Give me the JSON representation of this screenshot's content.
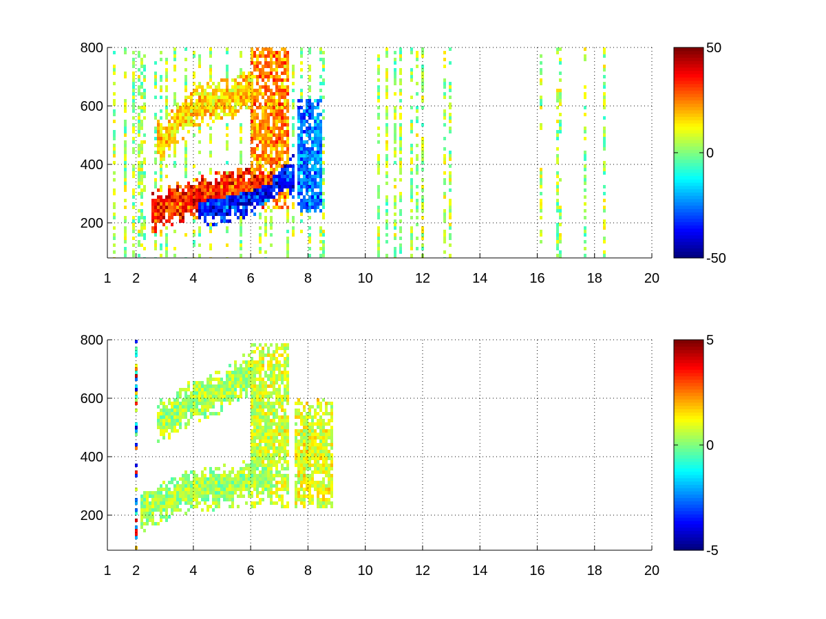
{
  "chart_data": [
    {
      "type": "heatmap",
      "title": "",
      "xlabel": "",
      "ylabel": "",
      "xlim": [
        1,
        20
      ],
      "ylim": [
        80,
        800
      ],
      "xticks": [
        1,
        2,
        4,
        6,
        8,
        10,
        12,
        14,
        16,
        18,
        20
      ],
      "yticks": [
        200,
        400,
        600,
        800
      ],
      "grid": true,
      "colormap": "jet",
      "clim": [
        -50,
        50
      ],
      "colorbar_ticks": [
        -50,
        0,
        50
      ],
      "description_features": [
        {
          "name": "ridge-upper",
          "x": [
            3.0,
            3.6,
            4.2,
            5.0,
            5.8
          ],
          "y": [
            480,
            560,
            600,
            615,
            650
          ],
          "value": 20
        },
        {
          "name": "ridge-lower",
          "x": [
            2.8,
            3.5,
            4.2,
            5.0,
            5.8,
            6.5
          ],
          "y": [
            240,
            270,
            290,
            300,
            320,
            340
          ],
          "value": 42
        },
        {
          "name": "trough-lower",
          "x": [
            4.5,
            5.5,
            6.2,
            6.8,
            7.2
          ],
          "y": [
            260,
            280,
            300,
            330,
            360
          ],
          "value": -45
        },
        {
          "name": "column-6-7",
          "x": [
            6.0,
            7.3
          ],
          "y": [
            250,
            800
          ],
          "value": 30
        },
        {
          "name": "column-7-8",
          "x": [
            7.6,
            8.5
          ],
          "y": [
            230,
            620
          ],
          "value": -30
        }
      ]
    },
    {
      "type": "heatmap",
      "title": "",
      "xlabel": "",
      "ylabel": "",
      "xlim": [
        1,
        20
      ],
      "ylim": [
        80,
        800
      ],
      "xticks": [
        1,
        2,
        4,
        6,
        8,
        10,
        12,
        14,
        16,
        18,
        20
      ],
      "yticks": [
        200,
        400,
        600,
        800
      ],
      "grid": true,
      "colormap": "jet",
      "clim": [
        -5,
        5
      ],
      "colorbar_ticks": [
        -5,
        0,
        5
      ],
      "description_features": [
        {
          "name": "upper-band",
          "x": [
            3.0,
            4.0,
            5.0,
            5.8
          ],
          "y": [
            520,
            590,
            620,
            680
          ],
          "value": 0.5
        },
        {
          "name": "lower-band",
          "x": [
            2.5,
            3.5,
            4.5,
            5.5,
            6.5
          ],
          "y": [
            220,
            270,
            290,
            300,
            330
          ],
          "value": 0.4
        },
        {
          "name": "column-6-7",
          "x": [
            6.0,
            7.3
          ],
          "y": [
            220,
            790
          ],
          "value": 1.0
        },
        {
          "name": "column-7-9",
          "x": [
            7.5,
            8.9
          ],
          "y": [
            220,
            600
          ],
          "value": 1.2
        }
      ]
    }
  ]
}
